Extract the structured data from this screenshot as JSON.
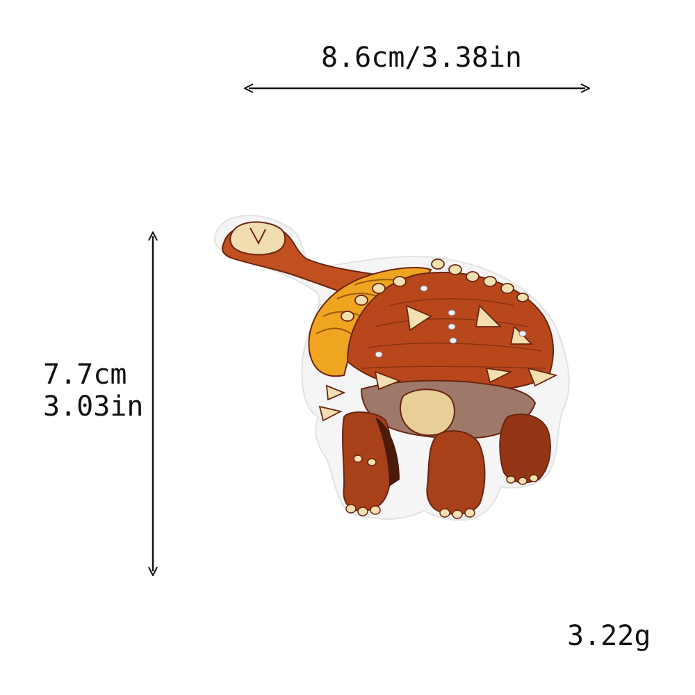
{
  "dimensions": {
    "width_label": "8.6cm/3.38in",
    "height_label_cm": "7.7cm",
    "height_label_in": "3.03in"
  },
  "weight_label": "3.22g",
  "product_image": {
    "subject": "ankylosaurus-embroidered-patch",
    "colors": {
      "body": "#b8481c",
      "body_dark": "#7a2a10",
      "armor_gold": "#f0a520",
      "spikes": "#f3dfb0",
      "belly": "#9e7868",
      "border": "#f6f6f6"
    }
  }
}
